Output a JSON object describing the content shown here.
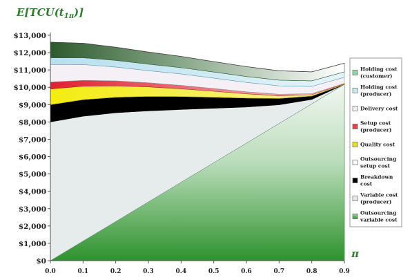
{
  "chart_data": {
    "type": "area",
    "stacked": true,
    "y_axis_title": "E[TCU(t",
    "y_axis_title_sub": "1π",
    "y_axis_title_end": ")]",
    "x_axis_title": "π",
    "x": [
      0.0,
      0.1,
      0.2,
      0.3,
      0.4,
      0.5,
      0.6,
      0.7,
      0.8,
      0.9
    ],
    "x_tick_labels": [
      "0.0",
      "0.1",
      "0.2",
      "0.3",
      "0.4",
      "0.5",
      "0.6",
      "0.7",
      "0.8",
      "0.9"
    ],
    "ylim": [
      0,
      13000
    ],
    "y_tick_labels": [
      "$0",
      "$1,000",
      "$2,000",
      "$3,000",
      "$4,000",
      "$5,000",
      "$6,000",
      "$7,000",
      "$8,000",
      "$9,000",
      "$10,000",
      "$11,000",
      "$12,000",
      "$13,000"
    ],
    "y_ticks": [
      0,
      1000,
      2000,
      3000,
      4000,
      5000,
      6000,
      7000,
      8000,
      9000,
      10000,
      11000,
      12000,
      13000
    ],
    "legend_position": "right",
    "series": [
      {
        "name": "Outsourcing variable cost",
        "color": "#3a9a3a",
        "values": [
          0,
          1130,
          2260,
          3390,
          4520,
          5650,
          6780,
          7910,
          9040,
          10170
        ]
      },
      {
        "name": "Variable cost (producer)",
        "color": "#e6ecec",
        "values": [
          8000,
          7200,
          6270,
          5250,
          4200,
          3140,
          2080,
          1080,
          260,
          0
        ]
      },
      {
        "name": "Breakdown cost",
        "color": "#000000",
        "values": [
          1000,
          960,
          900,
          840,
          750,
          640,
          520,
          370,
          200,
          0
        ]
      },
      {
        "name": "Outsourcing setup cost",
        "color": "#ffffff",
        "values": [
          0,
          0,
          0,
          0,
          0,
          0,
          0,
          0,
          0,
          0
        ]
      },
      {
        "name": "Quality cost",
        "color": "#f0e020",
        "values": [
          900,
          770,
          650,
          540,
          440,
          340,
          240,
          150,
          70,
          20
        ]
      },
      {
        "name": "Setup cost (producer)",
        "color": "#e8404a",
        "values": [
          400,
          340,
          290,
          240,
          200,
          160,
          120,
          90,
          60,
          30
        ]
      },
      {
        "name": "Delivery cost",
        "color": "#f4f0f6",
        "values": [
          1000,
          910,
          800,
          700,
          660,
          600,
          540,
          480,
          420,
          360
        ]
      },
      {
        "name": "Holding cost (producer)",
        "color": "#d2ecf4",
        "values": [
          400,
          390,
          380,
          370,
          360,
          350,
          340,
          330,
          320,
          310
        ]
      },
      {
        "name": "Holding cost (customer)",
        "color": "#2d5a2d",
        "values": [
          900,
          840,
          760,
          700,
          650,
          600,
          570,
          540,
          520,
          500
        ]
      }
    ]
  },
  "legend": {
    "items": [
      {
        "label_lines": [
          "Holding cost",
          "(customer)"
        ],
        "swatch": "#7fcfa0"
      },
      {
        "label_lines": [
          "Holding cost",
          "(producer)"
        ],
        "swatch": "#bfe6f0"
      },
      {
        "label_lines": [
          "Delivery cost"
        ],
        "swatch": "#f4f0f6"
      },
      {
        "label_lines": [
          "Setup cost",
          "(producer)"
        ],
        "swatch": "#e8404a"
      },
      {
        "label_lines": [
          "Quality cost"
        ],
        "swatch": "#f0e020"
      },
      {
        "label_lines": [
          "Outsourcing",
          "setup cost"
        ],
        "swatch": "#ffffff"
      },
      {
        "label_lines": [
          "Breakdown",
          "cost"
        ],
        "swatch": "#000000"
      },
      {
        "label_lines": [
          "Variable cost",
          "(producer)"
        ],
        "swatch": "#e6ecec"
      },
      {
        "label_lines": [
          "Outsourcing",
          "variable cost"
        ],
        "swatch": "#3a9a3a"
      }
    ]
  }
}
